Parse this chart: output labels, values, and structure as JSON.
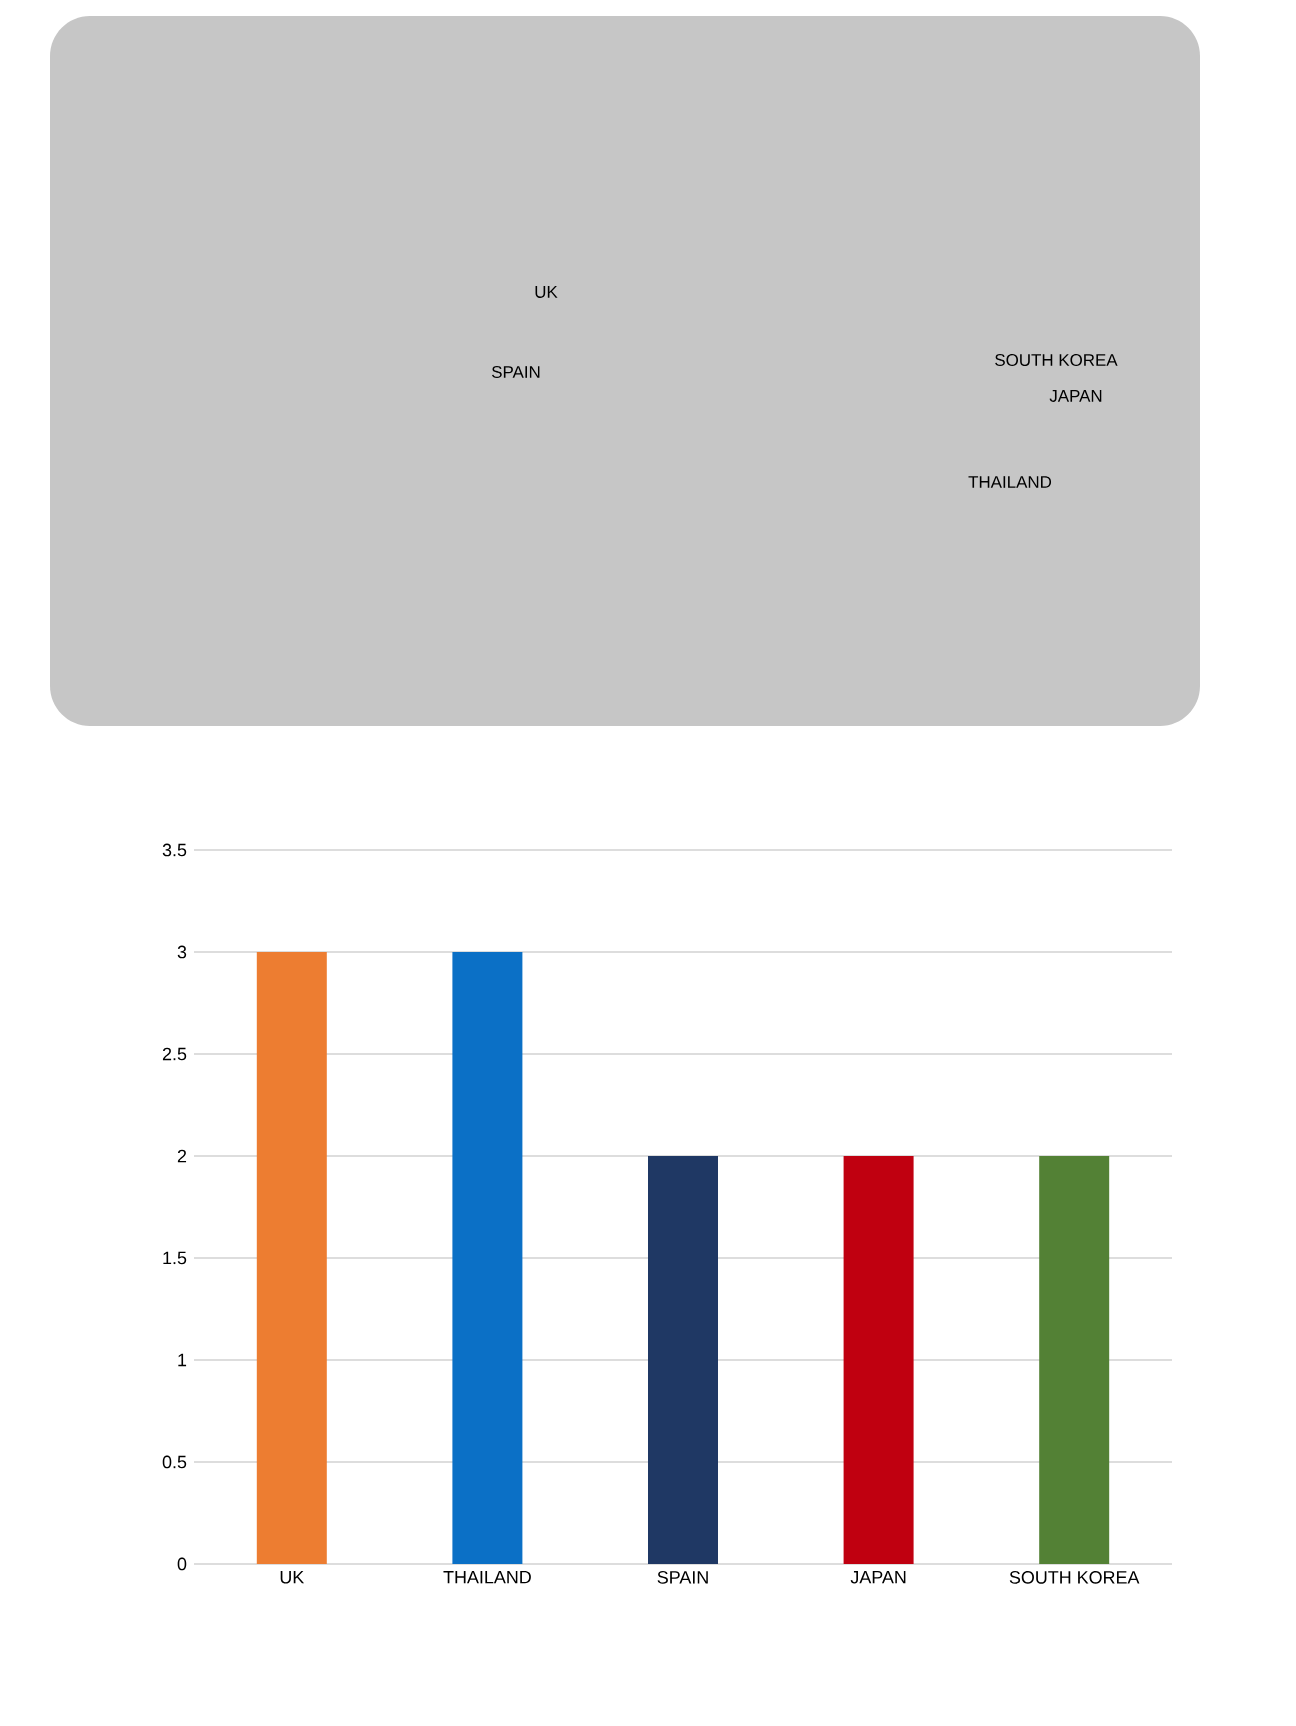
{
  "chart_data": {
    "type": "bar",
    "categories": [
      "UK",
      "THAILAND",
      "SPAIN",
      "JAPAN",
      "SOUTH KOREA"
    ],
    "values": [
      3,
      3,
      2,
      2,
      2
    ],
    "colors": [
      "#ed7d31",
      "#0b70c6",
      "#1f3864",
      "#c00010",
      "#538135"
    ],
    "ylim": [
      0,
      3.5
    ],
    "yticks": [
      0,
      0.5,
      1,
      1.5,
      2,
      2.5,
      3,
      3.5
    ],
    "grid": "y",
    "annotations": [
      "UK",
      "SPAIN",
      "SOUTH KOREA",
      "JAPAN",
      "THAILAND"
    ]
  }
}
